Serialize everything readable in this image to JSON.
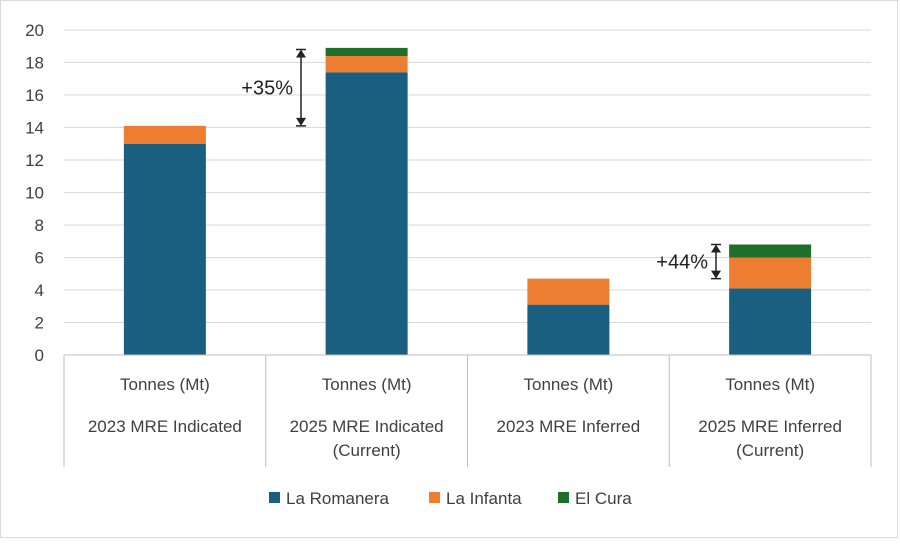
{
  "chart_data": {
    "type": "bar",
    "stacked": true,
    "ylim": [
      0,
      20
    ],
    "yticks": [
      0,
      2,
      4,
      6,
      8,
      10,
      12,
      14,
      16,
      18,
      20
    ],
    "grid": true,
    "legend_position": "bottom",
    "categories": [
      {
        "unit": "Tonnes (Mt)",
        "label_lines": [
          "2023 MRE Indicated"
        ]
      },
      {
        "unit": "Tonnes (Mt)",
        "label_lines": [
          "2025 MRE Indicated",
          "(Current)"
        ]
      },
      {
        "unit": "Tonnes (Mt)",
        "label_lines": [
          "2023 MRE Inferred"
        ]
      },
      {
        "unit": "Tonnes (Mt)",
        "label_lines": [
          "2025 MRE Inferred",
          "(Current)"
        ]
      }
    ],
    "series": [
      {
        "name": "La Romanera",
        "color": "#1b5f80",
        "values": [
          13.0,
          17.4,
          3.1,
          4.1
        ]
      },
      {
        "name": "La Infanta",
        "color": "#ed7d31",
        "values": [
          1.1,
          1.0,
          1.6,
          1.9
        ]
      },
      {
        "name": "El Cura",
        "color": "#1f6f2a",
        "values": [
          0.0,
          0.5,
          0.0,
          0.8
        ]
      }
    ],
    "annotations": [
      {
        "text": "+35%",
        "category_index": 1,
        "from": 14.1,
        "to": 18.8
      },
      {
        "text": "+44%",
        "category_index": 3,
        "from": 4.7,
        "to": 6.8
      }
    ]
  }
}
